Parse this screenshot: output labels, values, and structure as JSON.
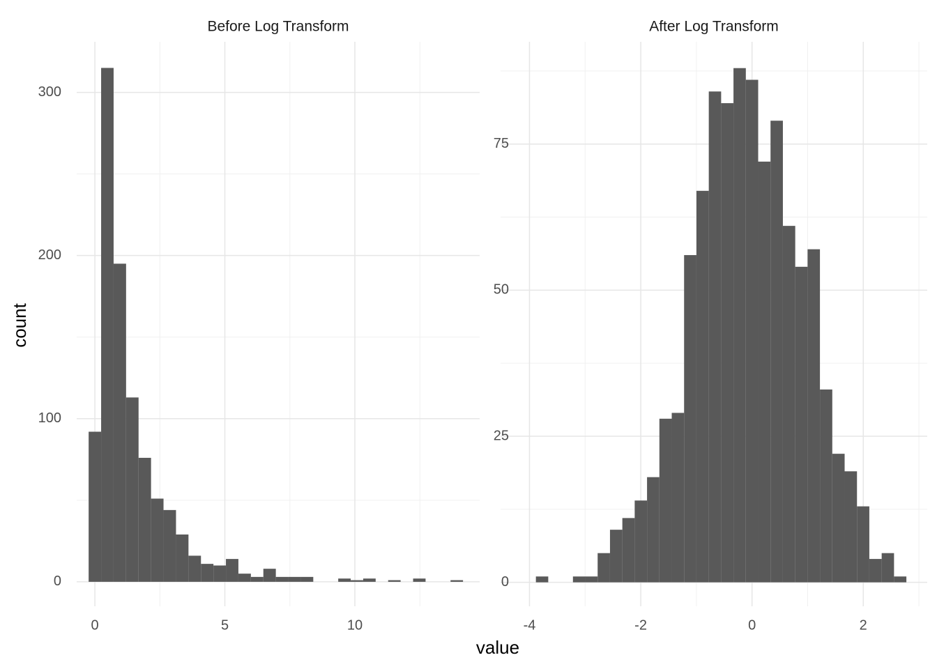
{
  "chart_data": [
    {
      "type": "histogram",
      "title": "Before Log Transform",
      "color": "#595959",
      "grid": true,
      "bins": [
        -0.24,
        0.24,
        0.72,
        1.2,
        1.68,
        2.16,
        2.64,
        3.12,
        3.6,
        4.08,
        4.56,
        5.04,
        5.52,
        6.0,
        6.48,
        6.96,
        7.44,
        7.92,
        8.4,
        8.88,
        9.36,
        9.84,
        10.32,
        10.8,
        11.28,
        11.76,
        12.24,
        12.72,
        13.2,
        13.68,
        14.16
      ],
      "values": [
        92,
        315,
        195,
        113,
        76,
        51,
        44,
        29,
        16,
        11,
        10,
        14,
        5,
        3,
        8,
        3,
        3,
        3,
        0,
        0,
        2,
        1,
        2,
        0,
        1,
        0,
        2,
        0,
        0,
        1
      ],
      "xlim": [
        -0.7,
        14.8
      ],
      "xticks": [
        0,
        5,
        10
      ],
      "ylim": [
        -15,
        331
      ],
      "yticks": [
        0,
        100,
        200,
        300
      ]
    },
    {
      "type": "histogram",
      "title": "After Log Transform",
      "color": "#595959",
      "grid": true,
      "bins": [
        -3.885,
        -3.663,
        -3.441,
        -3.219,
        -2.997,
        -2.775,
        -2.553,
        -2.331,
        -2.109,
        -1.887,
        -1.665,
        -1.443,
        -1.221,
        -0.999,
        -0.777,
        -0.555,
        -0.333,
        -0.111,
        0.111,
        0.333,
        0.555,
        0.777,
        0.999,
        1.221,
        1.443,
        1.665,
        1.887,
        2.109,
        2.331,
        2.553,
        2.775
      ],
      "values": [
        1,
        0,
        0,
        1,
        1,
        5,
        9,
        11,
        14,
        18,
        28,
        29,
        56,
        67,
        84,
        82,
        88,
        86,
        72,
        79,
        61,
        54,
        57,
        33,
        22,
        19,
        13,
        4,
        5,
        1
      ],
      "xlim": [
        -4.52,
        3.15
      ],
      "xticks": [
        -4,
        -2,
        0,
        2
      ],
      "ylim": [
        -4.1,
        92.5
      ],
      "yticks": [
        0,
        25,
        50,
        75
      ]
    }
  ],
  "x_label": "value",
  "y_label": "count"
}
